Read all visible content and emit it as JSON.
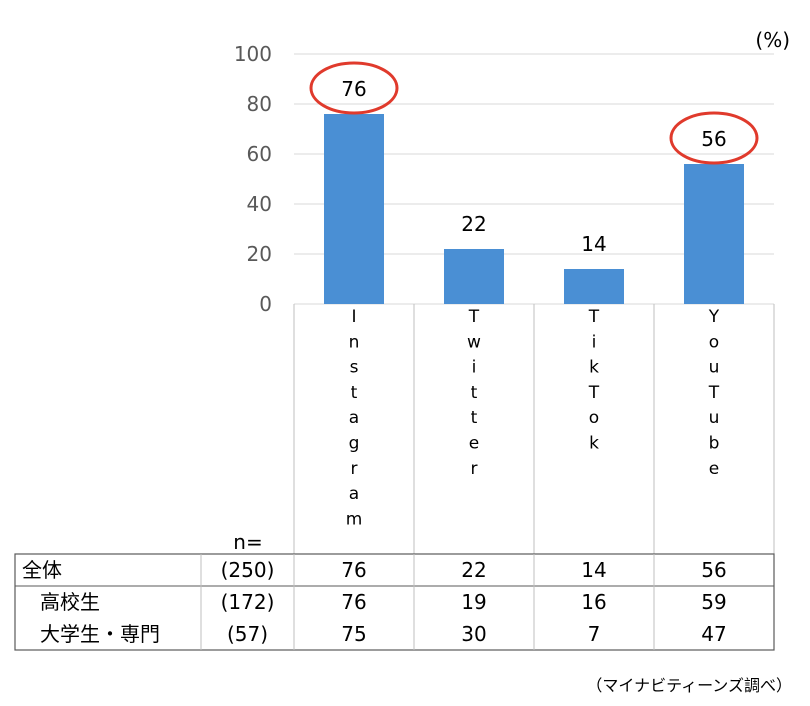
{
  "chart_data": {
    "type": "bar",
    "unit_label": "(%)",
    "ylim": [
      0,
      100
    ],
    "yticks": [
      "100",
      "80",
      "60",
      "40",
      "20",
      "0"
    ],
    "categories": [
      "Instagram",
      "Twitter",
      "TikTok",
      "YouTube"
    ],
    "values": [
      76,
      22,
      14,
      56
    ],
    "highlighted": [
      "Instagram",
      "YouTube"
    ],
    "bar_color": "#4a8fd4",
    "highlight_color": "#e03a2c",
    "grid": true
  },
  "table": {
    "n_label": "n=",
    "rows": [
      {
        "label": "全体",
        "n": "(250)",
        "values": [
          "76",
          "22",
          "14",
          "56"
        ]
      },
      {
        "label": "高校生",
        "n": "(172)",
        "values": [
          "76",
          "19",
          "16",
          "59"
        ]
      },
      {
        "label": "大学生・専門",
        "n": "(57)",
        "values": [
          "75",
          "30",
          "7",
          "47"
        ]
      }
    ]
  },
  "source": "（マイナビティーンズ調べ）"
}
